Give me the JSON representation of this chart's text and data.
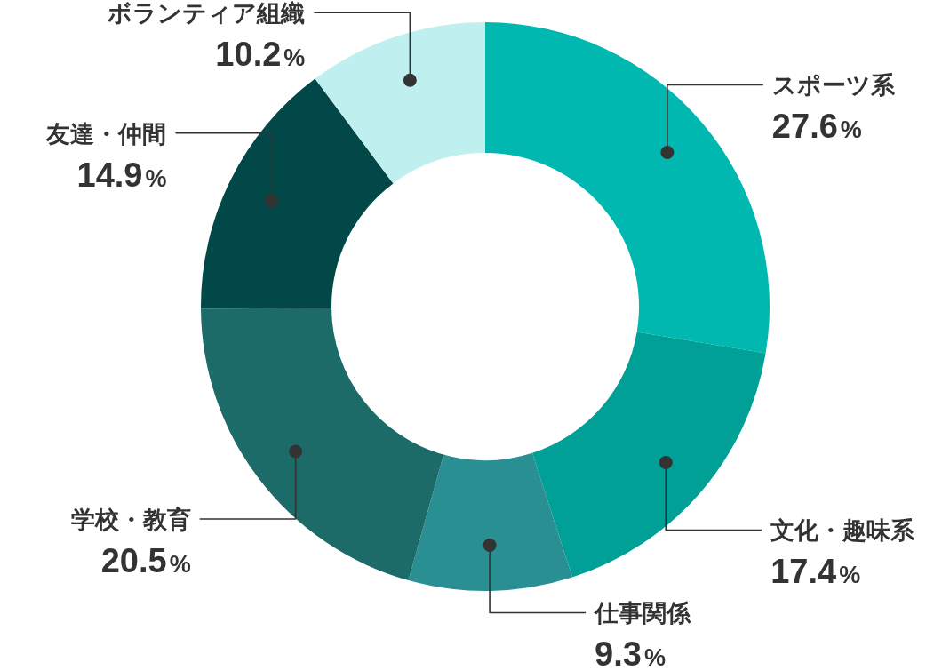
{
  "chart_data": {
    "type": "donut",
    "categories": [
      "スポーツ系",
      "文化・趣味系",
      "仕事関係",
      "学校・教育",
      "友達・仲間",
      "ボランティア組織"
    ],
    "values": [
      27.6,
      17.4,
      9.3,
      20.5,
      14.9,
      10.2
    ],
    "colors": [
      "#00b8b0",
      "#00a096",
      "#2a8f92",
      "#1c6b69",
      "#024848",
      "#c0eff0"
    ],
    "value_labels": [
      "27.6%",
      "17.4%",
      "9.3%",
      "20.5%",
      "14.9%",
      "10.2%"
    ]
  }
}
